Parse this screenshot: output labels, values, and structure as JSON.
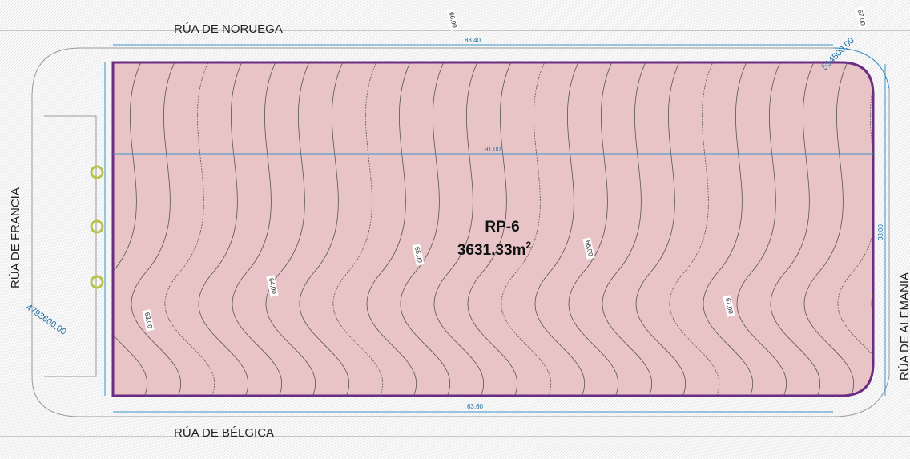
{
  "streets": {
    "north": "RÚA DE NORUEGA",
    "west": "RÚA DE FRANCIA",
    "south": "RÚA DE BÉLGICA",
    "east": "RÚA DE ALEMANIA"
  },
  "plot": {
    "name": "RP-6",
    "area": "3631.33m",
    "area_exponent": "2"
  },
  "dimensions": {
    "width": "91,00",
    "north_edge": "88,40",
    "height": "38,00",
    "south_edge": "63,60"
  },
  "coordinates": {
    "east": "554500,00",
    "west": "4793600,00"
  },
  "contour_labels": [
    "63,00",
    "64,00",
    "65,00",
    "66,00",
    "67,00",
    "66,00",
    "67,00"
  ]
}
